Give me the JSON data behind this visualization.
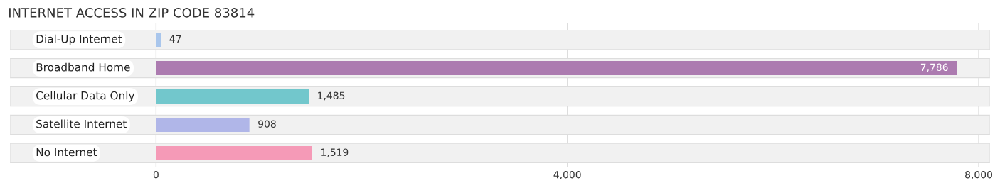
{
  "chart_data": {
    "type": "bar",
    "orientation": "horizontal",
    "title": "INTERNET ACCESS IN ZIP CODE 83814",
    "categories": [
      "Dial-Up Internet",
      "Broadband Home",
      "Cellular Data Only",
      "Satellite Internet",
      "No Internet"
    ],
    "values": [
      47,
      7786,
      1485,
      908,
      1519
    ],
    "colors": [
      "#a9c6ec",
      "#ac7bb0",
      "#72c7cc",
      "#b0b6e8",
      "#f59ab7"
    ],
    "value_labels": [
      "47",
      "7,786",
      "1,485",
      "908",
      "1,519"
    ],
    "xlim": [
      -1420,
      8110
    ],
    "xticks": [
      0,
      {
        "value": 4000,
        "label": "4,000"
      },
      {
        "value": 8000,
        "label": "8,000"
      }
    ],
    "grid": "x"
  }
}
